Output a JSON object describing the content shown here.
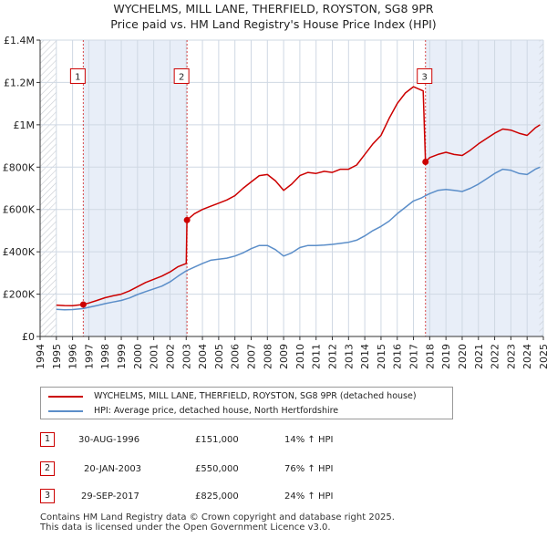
{
  "title": {
    "line1": "WYCHELMS, MILL LANE, THERFIELD, ROYSTON, SG8 9PR",
    "line2": "Price paid vs. HM Land Registry's House Price Index (HPI)"
  },
  "colors": {
    "property": "#cc0000",
    "hpi": "#5b8ec9",
    "shade": "#e8eef8",
    "grid": "#cfd8e3",
    "marker_border": "#cc0000"
  },
  "chart_data": {
    "type": "line",
    "x_unit": "year",
    "xlim": [
      1994,
      2025
    ],
    "ylim": [
      0,
      1400000
    ],
    "y_ticks": [
      {
        "value": 0,
        "label": "£0"
      },
      {
        "value": 200000,
        "label": "£200K"
      },
      {
        "value": 400000,
        "label": "£400K"
      },
      {
        "value": 600000,
        "label": "£600K"
      },
      {
        "value": 800000,
        "label": "£800K"
      },
      {
        "value": 1000000,
        "label": "£1M"
      },
      {
        "value": 1200000,
        "label": "£1.2M"
      },
      {
        "value": 1400000,
        "label": "£1.4M"
      }
    ],
    "x_ticks": [
      "1994",
      "1995",
      "1996",
      "1997",
      "1998",
      "1999",
      "2000",
      "2001",
      "2002",
      "2003",
      "2004",
      "2005",
      "2006",
      "2007",
      "2008",
      "2009",
      "2010",
      "2011",
      "2012",
      "2013",
      "2014",
      "2015",
      "2016",
      "2017",
      "2018",
      "2019",
      "2020",
      "2021",
      "2022",
      "2023",
      "2024",
      "2025"
    ],
    "shaded_ranges": [
      [
        1996.66,
        2003.05
      ],
      [
        2017.74,
        2025.0
      ]
    ],
    "hatched_ranges": [
      [
        1994.0,
        1995.0
      ],
      [
        2024.75,
        2025.0
      ]
    ],
    "sales": [
      {
        "id": "1",
        "x": 1996.66,
        "y": 151000,
        "date": "30-AUG-1996",
        "price": "£151,000",
        "hpi": "14% ↑ HPI"
      },
      {
        "id": "2",
        "x": 2003.05,
        "y": 550000,
        "date": "20-JAN-2003",
        "price": "£550,000",
        "hpi": "76% ↑ HPI"
      },
      {
        "id": "3",
        "x": 2017.74,
        "y": 825000,
        "date": "29-SEP-2017",
        "price": "£825,000",
        "hpi": "24% ↑ HPI"
      }
    ],
    "marker_y_value": 1230000,
    "series": [
      {
        "name": "WYCHELMS, MILL LANE, THERFIELD, ROYSTON, SG8 9PR (detached house)",
        "color": "#cc0000",
        "points": [
          [
            1995.0,
            148000
          ],
          [
            1995.5,
            146000
          ],
          [
            1996.0,
            145000
          ],
          [
            1996.66,
            151000
          ],
          [
            1997.0,
            158000
          ],
          [
            1997.5,
            170000
          ],
          [
            1998.0,
            183000
          ],
          [
            1998.5,
            192000
          ],
          [
            1999.0,
            200000
          ],
          [
            1999.5,
            215000
          ],
          [
            2000.0,
            235000
          ],
          [
            2000.5,
            255000
          ],
          [
            2001.0,
            270000
          ],
          [
            2001.5,
            285000
          ],
          [
            2002.0,
            305000
          ],
          [
            2002.5,
            330000
          ],
          [
            2003.0,
            345000
          ],
          [
            2003.05,
            550000
          ],
          [
            2003.5,
            580000
          ],
          [
            2004.0,
            600000
          ],
          [
            2004.5,
            615000
          ],
          [
            2005.0,
            630000
          ],
          [
            2005.5,
            645000
          ],
          [
            2006.0,
            665000
          ],
          [
            2006.5,
            700000
          ],
          [
            2007.0,
            730000
          ],
          [
            2007.5,
            760000
          ],
          [
            2008.0,
            765000
          ],
          [
            2008.5,
            735000
          ],
          [
            2009.0,
            690000
          ],
          [
            2009.5,
            720000
          ],
          [
            2010.0,
            760000
          ],
          [
            2010.5,
            775000
          ],
          [
            2011.0,
            770000
          ],
          [
            2011.5,
            780000
          ],
          [
            2012.0,
            775000
          ],
          [
            2012.5,
            790000
          ],
          [
            2013.0,
            790000
          ],
          [
            2013.5,
            810000
          ],
          [
            2014.0,
            860000
          ],
          [
            2014.5,
            910000
          ],
          [
            2015.0,
            950000
          ],
          [
            2015.5,
            1030000
          ],
          [
            2016.0,
            1100000
          ],
          [
            2016.5,
            1150000
          ],
          [
            2017.0,
            1180000
          ],
          [
            2017.3,
            1170000
          ],
          [
            2017.6,
            1160000
          ],
          [
            2017.74,
            825000
          ],
          [
            2018.0,
            845000
          ],
          [
            2018.5,
            860000
          ],
          [
            2019.0,
            870000
          ],
          [
            2019.5,
            860000
          ],
          [
            2020.0,
            855000
          ],
          [
            2020.5,
            880000
          ],
          [
            2021.0,
            910000
          ],
          [
            2021.5,
            935000
          ],
          [
            2022.0,
            960000
          ],
          [
            2022.5,
            980000
          ],
          [
            2023.0,
            975000
          ],
          [
            2023.5,
            960000
          ],
          [
            2024.0,
            950000
          ],
          [
            2024.5,
            985000
          ],
          [
            2024.8,
            1000000
          ]
        ]
      },
      {
        "name": "HPI: Average price, detached house, North Hertfordshire",
        "color": "#5b8ec9",
        "points": [
          [
            1995.0,
            128000
          ],
          [
            1995.5,
            126000
          ],
          [
            1996.0,
            127000
          ],
          [
            1996.66,
            132000
          ],
          [
            1997.0,
            138000
          ],
          [
            1997.5,
            146000
          ],
          [
            1998.0,
            155000
          ],
          [
            1998.5,
            163000
          ],
          [
            1999.0,
            170000
          ],
          [
            1999.5,
            182000
          ],
          [
            2000.0,
            198000
          ],
          [
            2000.5,
            212000
          ],
          [
            2001.0,
            225000
          ],
          [
            2001.5,
            238000
          ],
          [
            2002.0,
            258000
          ],
          [
            2002.5,
            285000
          ],
          [
            2003.0,
            310000
          ],
          [
            2003.5,
            328000
          ],
          [
            2004.0,
            345000
          ],
          [
            2004.5,
            360000
          ],
          [
            2005.0,
            365000
          ],
          [
            2005.5,
            370000
          ],
          [
            2006.0,
            380000
          ],
          [
            2006.5,
            395000
          ],
          [
            2007.0,
            415000
          ],
          [
            2007.5,
            430000
          ],
          [
            2008.0,
            430000
          ],
          [
            2008.5,
            410000
          ],
          [
            2009.0,
            380000
          ],
          [
            2009.5,
            395000
          ],
          [
            2010.0,
            420000
          ],
          [
            2010.5,
            430000
          ],
          [
            2011.0,
            430000
          ],
          [
            2011.5,
            432000
          ],
          [
            2012.0,
            435000
          ],
          [
            2012.5,
            440000
          ],
          [
            2013.0,
            445000
          ],
          [
            2013.5,
            455000
          ],
          [
            2014.0,
            475000
          ],
          [
            2014.5,
            500000
          ],
          [
            2015.0,
            520000
          ],
          [
            2015.5,
            545000
          ],
          [
            2016.0,
            580000
          ],
          [
            2016.5,
            610000
          ],
          [
            2017.0,
            640000
          ],
          [
            2017.5,
            655000
          ],
          [
            2017.74,
            665000
          ],
          [
            2018.0,
            675000
          ],
          [
            2018.5,
            690000
          ],
          [
            2019.0,
            695000
          ],
          [
            2019.5,
            690000
          ],
          [
            2020.0,
            685000
          ],
          [
            2020.5,
            700000
          ],
          [
            2021.0,
            720000
          ],
          [
            2021.5,
            745000
          ],
          [
            2022.0,
            770000
          ],
          [
            2022.5,
            790000
          ],
          [
            2023.0,
            785000
          ],
          [
            2023.5,
            770000
          ],
          [
            2024.0,
            765000
          ],
          [
            2024.5,
            790000
          ],
          [
            2024.8,
            800000
          ]
        ]
      }
    ]
  },
  "legend": {
    "property_label": "WYCHELMS, MILL LANE, THERFIELD, ROYSTON, SG8 9PR (detached house)",
    "hpi_label": "HPI: Average price, detached house, North Hertfordshire"
  },
  "table": [
    {
      "id": "1",
      "date": "30-AUG-1996",
      "price": "£151,000",
      "hpi": "14% ↑ HPI"
    },
    {
      "id": "2",
      "date": "20-JAN-2003",
      "price": "£550,000",
      "hpi": "76% ↑ HPI"
    },
    {
      "id": "3",
      "date": "29-SEP-2017",
      "price": "£825,000",
      "hpi": "24% ↑ HPI"
    }
  ],
  "footer": {
    "line1": "Contains HM Land Registry data © Crown copyright and database right 2025.",
    "line2": "This data is licensed under the Open Government Licence v3.0."
  }
}
